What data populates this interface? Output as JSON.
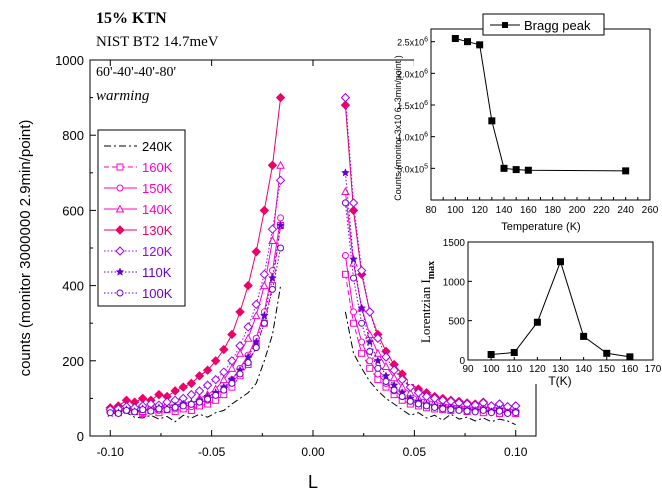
{
  "annotations": {
    "line1": "15% KTN",
    "line2": "NIST  BT2  14.7meV",
    "line3": "60'-40'-40'-80'",
    "line4": "warming"
  },
  "chart_data": [
    {
      "type": "line",
      "xlabel": "L",
      "ylabel": "counts (monitor 3000000  2.9min/point)",
      "xlim": [
        -0.11,
        0.11
      ],
      "ylim": [
        0,
        1000
      ],
      "xticks": [
        "-0.10",
        "-0.05",
        "0.00",
        "0.05",
        "0.10"
      ],
      "yticks": [
        "0",
        "200",
        "400",
        "600",
        "800",
        "1000"
      ],
      "legend_position": "left",
      "series": [
        {
          "name": "240K",
          "color": "#000000",
          "marker": "none",
          "dash": "dashdot",
          "left": {
            "x": [
              -0.1,
              -0.096,
              -0.092,
              -0.088,
              -0.084,
              -0.08,
              -0.076,
              -0.072,
              -0.068,
              -0.064,
              -0.06,
              -0.056,
              -0.052,
              -0.048,
              -0.044,
              -0.04,
              -0.036,
              -0.032,
              -0.028,
              -0.024,
              -0.02,
              -0.016
            ],
            "y": [
              65,
              55,
              62,
              50,
              48,
              55,
              45,
              52,
              38,
              55,
              48,
              58,
              50,
              62,
              68,
              85,
              100,
              115,
              140,
              200,
              270,
              400
            ]
          },
          "right": {
            "x": [
              0.016,
              0.02,
              0.024,
              0.028,
              0.032,
              0.036,
              0.04,
              0.044,
              0.048,
              0.052,
              0.056,
              0.06,
              0.064,
              0.068,
              0.072,
              0.076,
              0.08,
              0.084,
              0.088,
              0.092,
              0.096,
              0.1
            ],
            "y": [
              330,
              220,
              180,
              145,
              120,
              100,
              85,
              70,
              55,
              62,
              48,
              55,
              42,
              58,
              45,
              50,
              40,
              48,
              38,
              45,
              40,
              30
            ]
          }
        },
        {
          "name": "160K",
          "color": "#ff00cc",
          "marker": "square-open",
          "dash": "dash",
          "left": {
            "x": [
              -0.1,
              -0.096,
              -0.092,
              -0.088,
              -0.084,
              -0.08,
              -0.076,
              -0.072,
              -0.068,
              -0.064,
              -0.06,
              -0.056,
              -0.052,
              -0.048,
              -0.044,
              -0.04,
              -0.036,
              -0.032,
              -0.028,
              -0.024,
              -0.02,
              -0.016
            ],
            "y": [
              68,
              62,
              70,
              65,
              60,
              68,
              62,
              70,
              65,
              72,
              68,
              80,
              85,
              95,
              110,
              130,
              160,
              190,
              240,
              300,
              400,
              560
            ]
          },
          "right": {
            "x": [
              0.016,
              0.02,
              0.024,
              0.028,
              0.032,
              0.036,
              0.04,
              0.044,
              0.048,
              0.052,
              0.056,
              0.06,
              0.064,
              0.068,
              0.072,
              0.076,
              0.08,
              0.084,
              0.088,
              0.092,
              0.096,
              0.1
            ],
            "y": [
              430,
              300,
              220,
              180,
              150,
              130,
              110,
              95,
              85,
              80,
              75,
              72,
              70,
              68,
              72,
              65,
              70,
              62,
              68,
              60,
              65,
              60
            ]
          }
        },
        {
          "name": "150K",
          "color": "#ff00cc",
          "marker": "circle-open",
          "dash": "solid",
          "left": {
            "x": [
              -0.1,
              -0.096,
              -0.092,
              -0.088,
              -0.084,
              -0.08,
              -0.076,
              -0.072,
              -0.068,
              -0.064,
              -0.06,
              -0.056,
              -0.052,
              -0.048,
              -0.044,
              -0.04,
              -0.036,
              -0.032,
              -0.028,
              -0.024,
              -0.02,
              -0.016
            ],
            "y": [
              70,
              65,
              72,
              68,
              62,
              75,
              68,
              80,
              72,
              85,
              78,
              90,
              95,
              110,
              125,
              150,
              180,
              215,
              260,
              330,
              440,
              580
            ]
          },
          "right": {
            "x": [
              0.016,
              0.02,
              0.024,
              0.028,
              0.032,
              0.036,
              0.04,
              0.044,
              0.048,
              0.052,
              0.056,
              0.06,
              0.064,
              0.068,
              0.072,
              0.076,
              0.08,
              0.084,
              0.088,
              0.092,
              0.096,
              0.1
            ],
            "y": [
              480,
              330,
              250,
              200,
              165,
              140,
              120,
              105,
              95,
              90,
              85,
              80,
              75,
              78,
              72,
              75,
              68,
              72,
              65,
              70,
              62,
              65
            ]
          }
        },
        {
          "name": "140K",
          "color": "#ff00cc",
          "marker": "triangle-open",
          "dash": "solid",
          "left": {
            "x": [
              -0.1,
              -0.096,
              -0.092,
              -0.088,
              -0.084,
              -0.08,
              -0.076,
              -0.072,
              -0.068,
              -0.064,
              -0.06,
              -0.056,
              -0.052,
              -0.048,
              -0.044,
              -0.04,
              -0.036,
              -0.032,
              -0.028,
              -0.024,
              -0.02,
              -0.016
            ],
            "y": [
              72,
              68,
              75,
              70,
              65,
              78,
              72,
              85,
              78,
              90,
              85,
              100,
              110,
              125,
              150,
              180,
              220,
              260,
              320,
              400,
              520,
              720
            ]
          },
          "right": {
            "x": [
              0.016,
              0.02,
              0.024,
              0.028,
              0.032,
              0.036,
              0.04,
              0.044,
              0.048,
              0.052,
              0.056,
              0.06,
              0.064,
              0.068,
              0.072,
              0.076,
              0.08,
              0.084,
              0.088,
              0.092,
              0.096,
              0.1
            ],
            "y": [
              650,
              460,
              340,
              270,
              220,
              185,
              155,
              130,
              115,
              100,
              95,
              90,
              85,
              82,
              80,
              78,
              75,
              80,
              72,
              78,
              70,
              72
            ]
          }
        },
        {
          "name": "130K",
          "color": "#ee0066",
          "marker": "diamond-filled",
          "dash": "solid",
          "left": {
            "x": [
              -0.1,
              -0.096,
              -0.092,
              -0.088,
              -0.084,
              -0.08,
              -0.076,
              -0.072,
              -0.068,
              -0.064,
              -0.06,
              -0.056,
              -0.052,
              -0.048,
              -0.044,
              -0.04,
              -0.036,
              -0.032,
              -0.028,
              -0.024,
              -0.02,
              -0.016
            ],
            "y": [
              75,
              80,
              95,
              90,
              100,
              95,
              110,
              105,
              120,
              130,
              140,
              160,
              175,
              200,
              230,
              270,
              330,
              400,
              490,
              600,
              720,
              900
            ]
          },
          "right": {
            "x": [
              0.016,
              0.02,
              0.024,
              0.028,
              0.032,
              0.036,
              0.04,
              0.044,
              0.048,
              0.052,
              0.056,
              0.06,
              0.064,
              0.068,
              0.072,
              0.076,
              0.08,
              0.084,
              0.088,
              0.092,
              0.096,
              0.1
            ],
            "y": [
              880,
              600,
              430,
              330,
              270,
              225,
              190,
              165,
              140,
              125,
              115,
              105,
              100,
              95,
              92,
              88,
              85,
              90,
              80,
              85,
              78,
              80
            ]
          }
        },
        {
          "name": "120K",
          "color": "#9900ff",
          "marker": "diamond-open",
          "dash": "dot",
          "left": {
            "x": [
              -0.1,
              -0.096,
              -0.092,
              -0.088,
              -0.084,
              -0.08,
              -0.076,
              -0.072,
              -0.068,
              -0.064,
              -0.06,
              -0.056,
              -0.052,
              -0.048,
              -0.044,
              -0.04,
              -0.036,
              -0.032,
              -0.028,
              -0.024,
              -0.02,
              -0.016
            ],
            "y": [
              70,
              72,
              78,
              75,
              80,
              85,
              82,
              90,
              95,
              100,
              110,
              120,
              135,
              150,
              170,
              200,
              240,
              290,
              350,
              430,
              550,
              680
            ]
          },
          "right": {
            "x": [
              0.016,
              0.02,
              0.024,
              0.028,
              0.032,
              0.036,
              0.04,
              0.044,
              0.048,
              0.052,
              0.056,
              0.06,
              0.064,
              0.068,
              0.072,
              0.076,
              0.08,
              0.084,
              0.088,
              0.092,
              0.096,
              0.1
            ],
            "y": [
              900,
              620,
              440,
              330,
              260,
              210,
              175,
              150,
              130,
              115,
              105,
              100,
              95,
              92,
              88,
              85,
              82,
              88,
              80,
              85,
              78,
              80
            ]
          }
        },
        {
          "name": "110K",
          "color": "#6600cc",
          "marker": "star-filled",
          "dash": "dot",
          "left": {
            "x": [
              -0.1,
              -0.096,
              -0.092,
              -0.088,
              -0.084,
              -0.08,
              -0.076,
              -0.072,
              -0.068,
              -0.064,
              -0.06,
              -0.056,
              -0.052,
              -0.048,
              -0.044,
              -0.04,
              -0.036,
              -0.032,
              -0.028,
              -0.024,
              -0.02,
              -0.016
            ],
            "y": [
              60,
              62,
              70,
              65,
              72,
              68,
              75,
              72,
              80,
              85,
              88,
              95,
              105,
              115,
              130,
              150,
              175,
              210,
              250,
              320,
              420,
              560
            ]
          },
          "right": {
            "x": [
              0.016,
              0.02,
              0.024,
              0.028,
              0.032,
              0.036,
              0.04,
              0.044,
              0.048,
              0.052,
              0.056,
              0.06,
              0.064,
              0.068,
              0.072,
              0.076,
              0.08,
              0.084,
              0.088,
              0.092,
              0.096,
              0.1
            ],
            "y": [
              700,
              470,
              340,
              250,
              200,
              160,
              135,
              115,
              100,
              92,
              85,
              80,
              78,
              75,
              72,
              70,
              68,
              72,
              65,
              70,
              62,
              65
            ]
          }
        },
        {
          "name": "100K",
          "color": "#6600cc",
          "marker": "circle-open",
          "dash": "dot",
          "left": {
            "x": [
              -0.1,
              -0.096,
              -0.092,
              -0.088,
              -0.084,
              -0.08,
              -0.076,
              -0.072,
              -0.068,
              -0.064,
              -0.06,
              -0.056,
              -0.052,
              -0.048,
              -0.044,
              -0.04,
              -0.036,
              -0.032,
              -0.028,
              -0.024,
              -0.02,
              -0.016
            ],
            "y": [
              62,
              60,
              68,
              64,
              70,
              66,
              72,
              70,
              76,
              80,
              84,
              90,
              98,
              108,
              122,
              140,
              165,
              195,
              235,
              300,
              390,
              500
            ]
          },
          "right": {
            "x": [
              0.016,
              0.02,
              0.024,
              0.028,
              0.032,
              0.036,
              0.04,
              0.044,
              0.048,
              0.052,
              0.056,
              0.06,
              0.064,
              0.068,
              0.072,
              0.076,
              0.08,
              0.084,
              0.088,
              0.092,
              0.096,
              0.1
            ],
            "y": [
              620,
              420,
              300,
              225,
              180,
              145,
              122,
              105,
              92,
              85,
              80,
              76,
              72,
              70,
              68,
              66,
              64,
              68,
              62,
              66,
              60,
              62
            ]
          }
        }
      ]
    },
    {
      "type": "line",
      "xlabel": "Temperature (K)",
      "ylabel": "Counts  (monitor 3x10   6, 3min/point )",
      "xlim": [
        80,
        260
      ],
      "ylim": [
        0,
        2700000
      ],
      "xticks": [
        "80",
        "90",
        "100",
        "110",
        "120",
        "130",
        "140",
        "150",
        "160",
        "170",
        "180",
        "190",
        "200",
        "210",
        "220",
        "230",
        "240",
        "250",
        "260"
      ],
      "yticks": [
        {
          "mantissa": "5.0x10",
          "exp": "5",
          "value": 500000
        },
        {
          "mantissa": "1.0x10",
          "exp": "6",
          "value": 1000000
        },
        {
          "mantissa": "1.5x10",
          "exp": "6",
          "value": 1500000
        },
        {
          "mantissa": "2.0x10",
          "exp": "6",
          "value": 2000000
        },
        {
          "mantissa": "2.5x10",
          "exp": "6",
          "value": 2500000
        }
      ],
      "legend_position": "top-right",
      "series": [
        {
          "name": "Bragg peak",
          "color": "#000000",
          "marker": "square-filled",
          "x": [
            100,
            110,
            120,
            130,
            140,
            150,
            160,
            240
          ],
          "y": [
            2550000,
            2500000,
            2450000,
            1250000,
            500000,
            480000,
            470000,
            460000
          ]
        }
      ]
    },
    {
      "type": "line",
      "xlabel": "T(K)",
      "ylabel_main": "Lorentzian  I",
      "ylabel_sub": "max",
      "xlim": [
        90,
        170
      ],
      "ylim": [
        0,
        1500
      ],
      "xticks": [
        "90",
        "100",
        "110",
        "120",
        "130",
        "140",
        "150",
        "160",
        "170"
      ],
      "yticks": [
        "0",
        "500",
        "1000",
        "1500"
      ],
      "series": [
        {
          "color": "#000000",
          "marker": "square-filled",
          "x": [
            100,
            110,
            120,
            130,
            140,
            150,
            160
          ],
          "y": [
            70,
            95,
            480,
            1250,
            300,
            85,
            40
          ]
        }
      ]
    }
  ]
}
